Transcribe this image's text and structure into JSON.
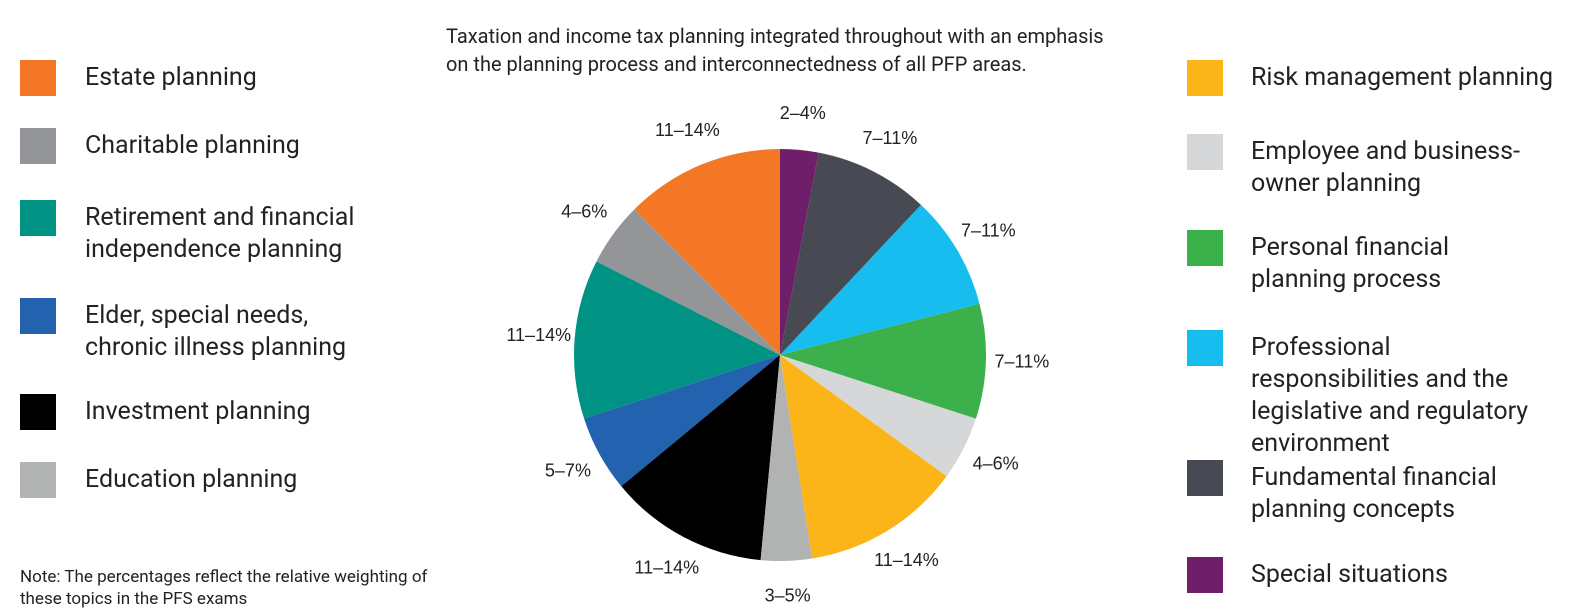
{
  "chart_data": {
    "type": "pie",
    "title": "Taxation and income tax planning integrated throughout with an emphasis on the planning process and interconnectedness of all PFP areas.",
    "note": "Note: The percentages reflect the relative weighting of these topics in the PFS exams",
    "categories": [
      "Estate planning",
      "Charitable planning",
      "Retirement and financial independence planning",
      "Elder, special needs, chronic illness planning",
      "Investment planning",
      "Education planning",
      "Risk management planning",
      "Employee and business-owner planning",
      "Personal financial planning process",
      "Professional responsibilities and the legislative and regulatory environment",
      "Fundamental financial planning concepts",
      "Special situations"
    ],
    "values": [
      [
        11,
        14
      ],
      [
        4,
        6
      ],
      [
        11,
        14
      ],
      [
        5,
        7
      ],
      [
        11,
        14
      ],
      [
        3,
        5
      ],
      [
        11,
        14
      ],
      [
        4,
        6
      ],
      [
        7,
        11
      ],
      [
        7,
        11
      ],
      [
        7,
        11
      ],
      [
        2,
        4
      ]
    ],
    "value_labels": [
      "11–14%",
      "4–6%",
      "11–14%",
      "5–7%",
      "11–14%",
      "3–5%",
      "11–14%",
      "4–6%",
      "7–11%",
      "7–11%",
      "7–11%",
      "2–4%"
    ],
    "colors": [
      "#f47725",
      "#939598",
      "#009383",
      "#2262ae",
      "#000000",
      "#b1b3b3",
      "#fbb519",
      "#d6d7d8",
      "#3cb04a",
      "#18bdf0",
      "#474a53",
      "#6f1f6a"
    ]
  }
}
